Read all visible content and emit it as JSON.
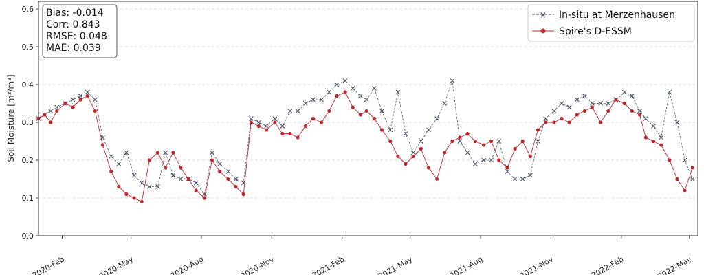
{
  "chart_data": {
    "type": "line",
    "ylabel": "Soil Moisture [m³/m³]",
    "ylim": [
      0,
      0.62
    ],
    "yticks": [
      "0.0",
      "0.1",
      "0.2",
      "0.3",
      "0.4",
      "0.5",
      "0.6"
    ],
    "xticks": [
      {
        "date": "2020-02-01",
        "label": "2020-Feb"
      },
      {
        "date": "2020-05-01",
        "label": "2020-May"
      },
      {
        "date": "2020-08-01",
        "label": "2020-Aug"
      },
      {
        "date": "2020-11-01",
        "label": "2020-Nov"
      },
      {
        "date": "2021-02-01",
        "label": "2021-Feb"
      },
      {
        "date": "2021-05-01",
        "label": "2021-May"
      },
      {
        "date": "2021-08-01",
        "label": "2021-Aug"
      },
      {
        "date": "2021-11-01",
        "label": "2021-Nov"
      },
      {
        "date": "2022-02-01",
        "label": "2022-Feb"
      },
      {
        "date": "2022-05-01",
        "label": "2022-May"
      }
    ],
    "xlim": [
      "2020-01-01",
      "2022-05-12"
    ],
    "grid": "horizontal dashed",
    "legend_position": "top-right",
    "stats": [
      "Bias: -0.014",
      "Corr: 0.843",
      "RMSE: 0.048",
      "MAE: 0.039"
    ],
    "series": [
      {
        "name": "In-situ at Merzenhausen",
        "color": "#4a5568",
        "marker": "x",
        "linestyle": "dashed",
        "values": [
          0.31,
          0.32,
          0.33,
          0.34,
          0.35,
          0.36,
          0.37,
          0.38,
          0.36,
          0.26,
          0.21,
          0.19,
          0.22,
          0.16,
          0.14,
          0.13,
          0.13,
          0.22,
          0.16,
          0.15,
          0.15,
          0.14,
          0.11,
          0.22,
          0.19,
          0.17,
          0.15,
          0.14,
          0.31,
          0.3,
          0.29,
          0.31,
          0.29,
          0.33,
          0.33,
          0.35,
          0.36,
          0.36,
          0.38,
          0.4,
          0.41,
          0.39,
          0.37,
          0.36,
          0.39,
          0.33,
          0.28,
          0.38,
          0.27,
          0.22,
          0.25,
          0.28,
          0.31,
          0.35,
          0.41,
          0.25,
          0.22,
          0.19,
          0.2,
          0.2,
          0.25,
          0.17,
          0.15,
          0.15,
          0.16,
          0.25,
          0.31,
          0.33,
          0.35,
          0.34,
          0.36,
          0.37,
          0.35,
          0.35,
          0.35,
          0.36,
          0.38,
          0.37,
          0.33,
          0.31,
          0.29,
          0.26,
          0.38,
          0.3,
          0.2,
          0.15
        ]
      },
      {
        "name": "Spire's D-ESSM",
        "color": "#c0282d",
        "marker": "o",
        "linestyle": "solid",
        "values": [
          0.31,
          0.32,
          0.3,
          0.33,
          0.35,
          0.34,
          0.36,
          0.37,
          0.33,
          0.24,
          0.17,
          0.13,
          0.11,
          0.1,
          0.09,
          0.2,
          0.22,
          0.18,
          0.22,
          0.18,
          0.15,
          0.12,
          0.1,
          0.2,
          0.17,
          0.15,
          0.13,
          0.11,
          0.3,
          0.29,
          0.28,
          0.3,
          0.27,
          0.27,
          0.26,
          0.29,
          0.31,
          0.3,
          0.33,
          0.37,
          0.38,
          0.34,
          0.32,
          0.33,
          0.31,
          0.28,
          0.25,
          0.21,
          0.19,
          0.21,
          0.23,
          0.18,
          0.15,
          0.22,
          0.25,
          0.26,
          0.27,
          0.25,
          0.24,
          0.25,
          0.2,
          0.18,
          0.23,
          0.25,
          0.21,
          0.28,
          0.3,
          0.3,
          0.31,
          0.3,
          0.32,
          0.33,
          0.34,
          0.3,
          0.33,
          0.36,
          0.35,
          0.33,
          0.32,
          0.26,
          0.25,
          0.24,
          0.2,
          0.15,
          0.12,
          0.18
        ]
      }
    ]
  }
}
